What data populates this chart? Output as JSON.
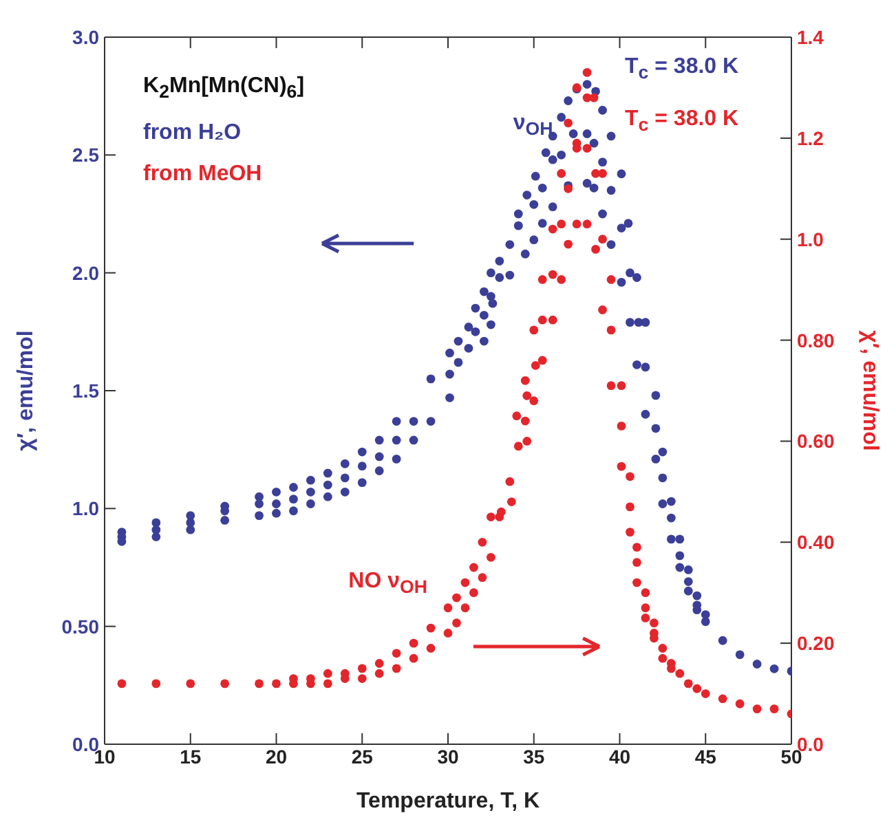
{
  "chart_data": {
    "type": "scatter",
    "xlabel": "Temperature, T, K",
    "ylabel": "χ′, emu/mol",
    "y2label": "χ′, emu/mol",
    "legend_title": "K$_{2}$Mn[Mn(CN)$_{6}$]",
    "legend": "top left",
    "marker": "circle",
    "xlim": [
      10,
      50
    ],
    "xticks": [
      10,
      15,
      20,
      25,
      30,
      35,
      40,
      45,
      50
    ],
    "ylim": [
      0,
      3
    ],
    "yticks": [
      {
        "value": 0,
        "label": "0.0"
      },
      {
        "value": 0.5,
        "label": "0.50"
      },
      {
        "value": 1,
        "label": "1.0"
      },
      {
        "value": 1.5,
        "label": "1.5"
      },
      {
        "value": 2,
        "label": "2.0"
      },
      {
        "value": 2.5,
        "label": "2.5"
      },
      {
        "value": 3,
        "label": "3.0"
      }
    ],
    "y2lim": [
      0,
      1.4
    ],
    "y2ticks": [
      {
        "value": 0,
        "label": "0.0"
      },
      {
        "value": 0.2,
        "label": "0.20"
      },
      {
        "value": 0.4,
        "label": "0.40"
      },
      {
        "value": 0.6,
        "label": "0.60"
      },
      {
        "value": 0.8,
        "label": "0.80"
      },
      {
        "value": 1,
        "label": "1.0"
      },
      {
        "value": 1.2,
        "label": "1.2"
      },
      {
        "value": 1.4,
        "label": "1.4"
      }
    ],
    "annotations": [
      "T$_{c}$ = 38.0 K",
      "T$_{c}$ = 38.0 K",
      "ν$_{OH}$",
      "NO ν$_{OH}$"
    ],
    "series": [
      {
        "name": "from H₂O",
        "color": "#3b3f97",
        "x": [
          11,
          11,
          11,
          13,
          13,
          13,
          15,
          15,
          15,
          17,
          17,
          17,
          19,
          19,
          19,
          20,
          20,
          20,
          21,
          21,
          21,
          22,
          22,
          22,
          23,
          23,
          23,
          24,
          24,
          24,
          25,
          25,
          25,
          26,
          26,
          26,
          27,
          27,
          27,
          28,
          28,
          29,
          29,
          30.1,
          30.1,
          30.1,
          30.6,
          30.6,
          31.2,
          31.2,
          31.6,
          31.6,
          32.1,
          32.1,
          32.1,
          32.5,
          32.5,
          32.5,
          33.0,
          33.6,
          34.1,
          34.6,
          35.1,
          35.7,
          36.1,
          36.6,
          37.0,
          37.5,
          38.1,
          38.6,
          39.0,
          39.5,
          40.1,
          40.5,
          41.0,
          41.5,
          42.1,
          33.0,
          34.1,
          35.0,
          35.5,
          36.1,
          36.6,
          37.3,
          38.1,
          38.5,
          39.0,
          39.5,
          40.1,
          40.6,
          41.1,
          41.5,
          41.5,
          32.6,
          33.6,
          34.5,
          35.0,
          35.5,
          36.1,
          37.0,
          38.1,
          38.5,
          39.0,
          39.5,
          40.1,
          40.6,
          41.0,
          42.1,
          42.1,
          42.5,
          42.5,
          42.5,
          43.0,
          43.0,
          43.0,
          43.5,
          43.5,
          43.5,
          44.0,
          44.0,
          44.0,
          44.5,
          44.5,
          44.5,
          45.0,
          45.0,
          46.0,
          47.0,
          48.0,
          49.0,
          50.0
        ],
        "values": [
          0.9,
          0.88,
          0.86,
          0.94,
          0.91,
          0.88,
          0.97,
          0.94,
          0.91,
          1.01,
          0.99,
          0.95,
          1.05,
          1.02,
          0.97,
          1.07,
          1.02,
          0.98,
          1.09,
          1.04,
          0.99,
          1.12,
          1.07,
          1.02,
          1.15,
          1.1,
          1.05,
          1.19,
          1.13,
          1.07,
          1.24,
          1.18,
          1.11,
          1.29,
          1.22,
          1.16,
          1.37,
          1.29,
          1.21,
          1.37,
          1.29,
          1.37,
          1.55,
          1.47,
          1.57,
          1.66,
          1.71,
          1.62,
          1.68,
          1.77,
          1.85,
          1.75,
          1.92,
          1.82,
          1.71,
          2.0,
          1.9,
          1.78,
          2.05,
          2.12,
          2.25,
          2.33,
          2.41,
          2.51,
          2.58,
          2.66,
          2.73,
          2.78,
          2.8,
          2.77,
          2.69,
          2.58,
          2.42,
          2.21,
          1.98,
          1.79,
          1.48,
          1.98,
          2.2,
          2.29,
          2.36,
          2.48,
          2.5,
          2.59,
          2.59,
          2.55,
          2.47,
          2.35,
          2.19,
          2.0,
          1.79,
          1.6,
          1.4,
          1.87,
          1.99,
          2.08,
          2.14,
          2.21,
          2.28,
          2.37,
          2.38,
          2.36,
          2.25,
          2.12,
          1.96,
          1.79,
          1.61,
          1.34,
          1.21,
          1.24,
          1.13,
          1.02,
          1.03,
          0.96,
          0.87,
          0.87,
          0.8,
          0.75,
          0.74,
          0.69,
          0.65,
          0.63,
          0.59,
          0.57,
          0.55,
          0.52,
          0.44,
          0.38,
          0.34,
          0.32,
          0.31
        ]
      },
      {
        "name": "from MeOH",
        "color": "#e3262c",
        "axis": "y2",
        "x": [
          11,
          13,
          15,
          17,
          19,
          20,
          21,
          21,
          22,
          22,
          23,
          23,
          24,
          24,
          25,
          25,
          26,
          26,
          27,
          27,
          28,
          28,
          29,
          29,
          30,
          30,
          30.5,
          30.5,
          31,
          31,
          31.5,
          31.5,
          32,
          32,
          32.5,
          32.5,
          33.0,
          33.6,
          34.1,
          34.5,
          33.1,
          33.7,
          34.6,
          34.0,
          34.6,
          35.0,
          34.5,
          35.1,
          35.5,
          35.0,
          35.5,
          36.1,
          35.5,
          36.1,
          36.6,
          37.0,
          36.1,
          36.6,
          37.5,
          38.1,
          38.6,
          39.0,
          39.5,
          39.5,
          39.0,
          39.5,
          40.1,
          36.6,
          37.0,
          37.5,
          38.1,
          38.6,
          39.0,
          37.0,
          38.1,
          37.5,
          38.1,
          38.5,
          37.5,
          40.1,
          40.1,
          40.6,
          40.6,
          40.6,
          41.0,
          41.0,
          41.0,
          41.5,
          41.5,
          41.5,
          42.0,
          42.0,
          42.0,
          42.5,
          42.5,
          43.0,
          43.0,
          43.5,
          44.0,
          44.5,
          45.0,
          46.0,
          47.0,
          48.0,
          49.0,
          50.0
        ],
        "values": [
          0.12,
          0.12,
          0.12,
          0.12,
          0.12,
          0.12,
          0.13,
          0.12,
          0.13,
          0.12,
          0.14,
          0.12,
          0.14,
          0.13,
          0.15,
          0.13,
          0.16,
          0.14,
          0.18,
          0.15,
          0.2,
          0.17,
          0.23,
          0.19,
          0.27,
          0.22,
          0.29,
          0.24,
          0.32,
          0.27,
          0.35,
          0.3,
          0.4,
          0.33,
          0.45,
          0.37,
          0.45,
          0.52,
          0.59,
          0.64,
          0.46,
          0.48,
          0.6,
          0.65,
          0.69,
          0.68,
          0.72,
          0.75,
          0.76,
          0.82,
          0.84,
          0.84,
          0.92,
          0.93,
          0.92,
          0.99,
          1.02,
          1.03,
          1.03,
          1.03,
          0.98,
          1.0,
          0.92,
          0.82,
          0.86,
          0.71,
          0.71,
          1.13,
          1.1,
          1.18,
          1.18,
          1.13,
          1.13,
          1.23,
          1.28,
          1.3,
          1.33,
          1.28,
          1.19,
          0.63,
          0.55,
          0.53,
          0.47,
          0.42,
          0.39,
          0.36,
          0.32,
          0.3,
          0.27,
          0.25,
          0.24,
          0.22,
          0.21,
          0.19,
          0.17,
          0.16,
          0.15,
          0.14,
          0.12,
          0.11,
          0.1,
          0.09,
          0.08,
          0.07,
          0.07,
          0.06
        ]
      }
    ]
  }
}
